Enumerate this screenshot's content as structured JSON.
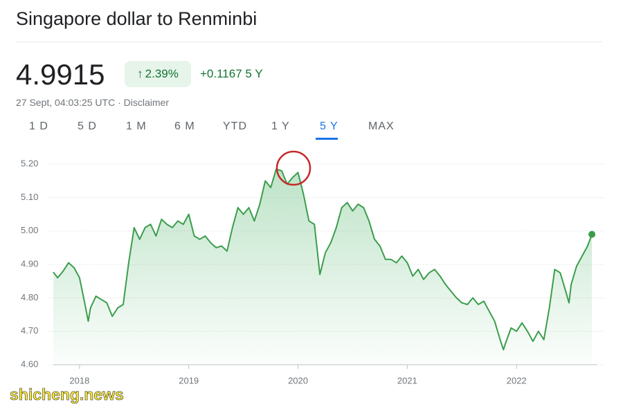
{
  "header": {
    "title": "Singapore dollar to Renminbi",
    "price": "4.9915",
    "change_pct": "2.39%",
    "change_abs": "+0.1167",
    "period": "5 Y",
    "timestamp": "27 Sept, 04:03:25 UTC · Disclaimer"
  },
  "tabs": [
    "1 D",
    "5 D",
    "1 M",
    "6 M",
    "YTD",
    "1 Y",
    "5 Y",
    "MAX"
  ],
  "active_tab": 6,
  "watermark": "shicheng.news",
  "chart_data": {
    "type": "line",
    "x": [
      2017.76,
      2017.8,
      2017.85,
      2017.9,
      2017.95,
      2018.0,
      2018.05,
      2018.08,
      2018.1,
      2018.15,
      2018.2,
      2018.25,
      2018.3,
      2018.35,
      2018.4,
      2018.45,
      2018.5,
      2018.55,
      2018.6,
      2018.65,
      2018.7,
      2018.75,
      2018.8,
      2018.85,
      2018.9,
      2018.95,
      2019.0,
      2019.05,
      2019.1,
      2019.15,
      2019.2,
      2019.25,
      2019.3,
      2019.35,
      2019.4,
      2019.45,
      2019.5,
      2019.55,
      2019.6,
      2019.65,
      2019.7,
      2019.75,
      2019.8,
      2019.85,
      2019.9,
      2019.95,
      2020.0,
      2020.05,
      2020.1,
      2020.15,
      2020.2,
      2020.25,
      2020.3,
      2020.35,
      2020.4,
      2020.45,
      2020.5,
      2020.55,
      2020.6,
      2020.65,
      2020.7,
      2020.75,
      2020.8,
      2020.85,
      2020.9,
      2020.95,
      2021.0,
      2021.05,
      2021.1,
      2021.15,
      2021.2,
      2021.25,
      2021.3,
      2021.35,
      2021.4,
      2021.45,
      2021.5,
      2021.55,
      2021.6,
      2021.65,
      2021.7,
      2021.75,
      2021.8,
      2021.85,
      2021.88,
      2021.9,
      2021.95,
      2022.0,
      2022.05,
      2022.1,
      2022.15,
      2022.2,
      2022.25,
      2022.3,
      2022.35,
      2022.4,
      2022.45,
      2022.48,
      2022.5,
      2022.55,
      2022.6,
      2022.65,
      2022.69
    ],
    "series": [
      {
        "color": "#3a9d4c",
        "values": [
          4.877,
          4.86,
          4.88,
          4.905,
          4.89,
          4.86,
          4.78,
          4.73,
          4.77,
          4.805,
          4.795,
          4.785,
          4.745,
          4.77,
          4.78,
          4.905,
          5.01,
          4.975,
          5.01,
          5.02,
          4.985,
          5.035,
          5.02,
          5.01,
          5.03,
          5.02,
          5.05,
          4.985,
          4.975,
          4.985,
          4.965,
          4.95,
          4.955,
          4.94,
          5.01,
          5.07,
          5.05,
          5.07,
          5.03,
          5.08,
          5.15,
          5.13,
          5.185,
          5.18,
          5.14,
          5.16,
          5.175,
          5.11,
          5.03,
          5.02,
          4.87,
          4.935,
          4.965,
          5.01,
          5.07,
          5.085,
          5.06,
          5.08,
          5.07,
          5.03,
          4.975,
          4.955,
          4.915,
          4.915,
          4.905,
          4.925,
          4.905,
          4.865,
          4.885,
          4.855,
          4.875,
          4.885,
          4.865,
          4.84,
          4.82,
          4.8,
          4.785,
          4.78,
          4.8,
          4.78,
          4.79,
          4.76,
          4.73,
          4.675,
          4.645,
          4.665,
          4.71,
          4.7,
          4.725,
          4.7,
          4.67,
          4.7,
          4.675,
          4.77,
          4.885,
          4.875,
          4.82,
          4.785,
          4.84,
          4.895,
          4.925,
          4.955,
          4.99
        ]
      }
    ],
    "xlim": [
      2017.76,
      2022.74
    ],
    "xticks": [
      2018,
      2019,
      2020,
      2021,
      2022
    ],
    "ylim": [
      4.6,
      5.25
    ],
    "yticks": [
      {
        "value": 5.2,
        "label": "5.20"
      },
      {
        "value": 5.1,
        "label": "5.10"
      },
      {
        "value": 5.0,
        "label": "5.00"
      },
      {
        "value": 4.9,
        "label": "4.90"
      },
      {
        "value": 4.8,
        "label": "4.80"
      },
      {
        "value": 4.7,
        "label": "4.70"
      },
      {
        "value": 4.6,
        "label": "4.60"
      }
    ],
    "grid": true
  }
}
